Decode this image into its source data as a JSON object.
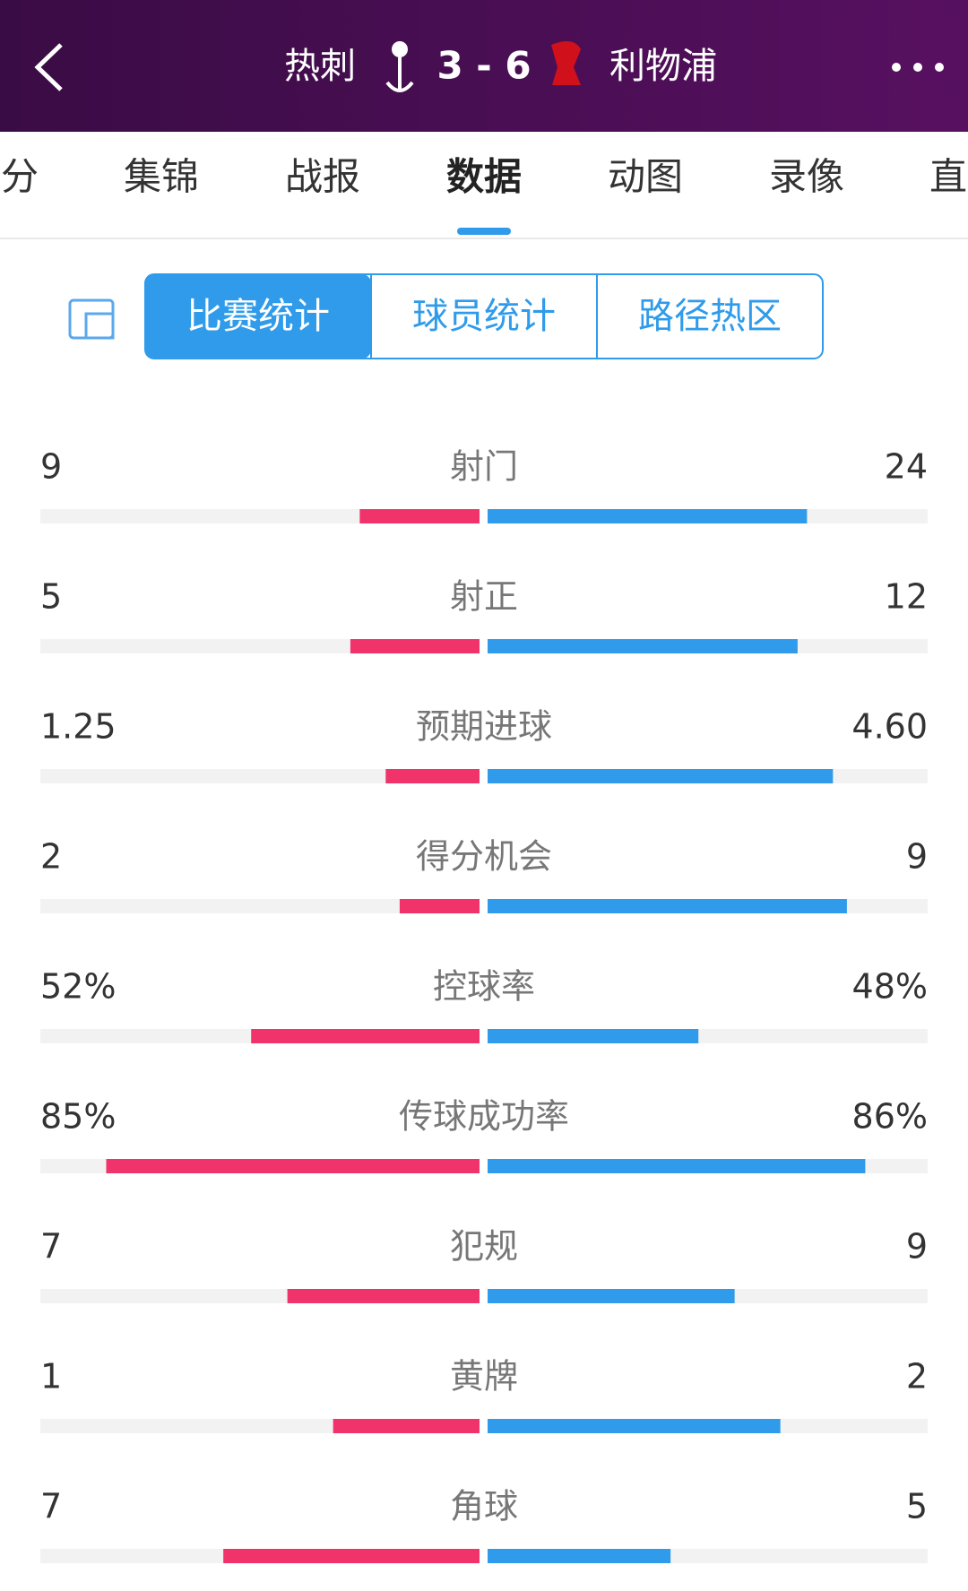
{
  "header": {
    "home": "热刺",
    "score": "3 - 6",
    "away": "利物浦"
  },
  "tabs": [
    "分",
    "集锦",
    "战报",
    "数据",
    "动图",
    "录像",
    "直"
  ],
  "active_tab": 3,
  "segments": [
    "比赛统计",
    "球员统计",
    "路径热区"
  ],
  "active_segment": 0,
  "stats": [
    {
      "label": "射门",
      "home": 9,
      "away": 24
    },
    {
      "label": "射正",
      "home": 5,
      "away": 12
    },
    {
      "label": "预期进球",
      "home": 1.25,
      "away": 4.6,
      "value_labels": [
        "1.25",
        "4.60"
      ]
    },
    {
      "label": "得分机会",
      "home": 2,
      "away": 9
    },
    {
      "label": "控球率",
      "home": 52,
      "away": 48,
      "percent": true,
      "value_labels": [
        "52%",
        "48%"
      ]
    },
    {
      "label": "传球成功率",
      "home": 85,
      "away": 86,
      "percent": true,
      "value_labels": [
        "85%",
        "86%"
      ]
    },
    {
      "label": "犯规",
      "home": 7,
      "away": 9
    },
    {
      "label": "黄牌",
      "home": 1,
      "away": 2
    },
    {
      "label": "角球",
      "home": 7,
      "away": 5
    }
  ],
  "colors": {
    "home": "#f0336b",
    "away": "#2f9bea",
    "track": "#f2f2f2"
  }
}
